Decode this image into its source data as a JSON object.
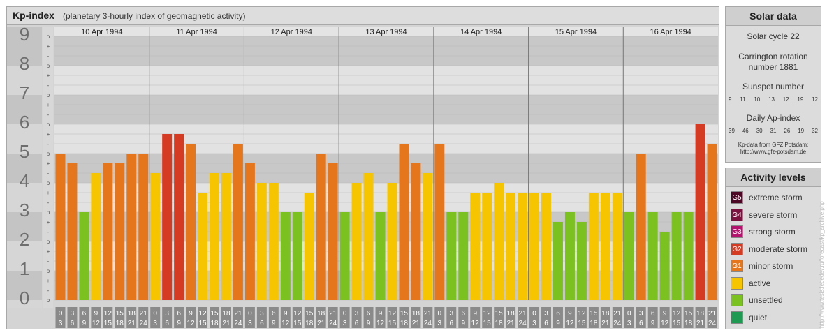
{
  "header": {
    "title": "Kp-index",
    "subtitle": "(planetary 3-hourly index of geomagnetic activity)"
  },
  "chart_data": {
    "type": "bar",
    "ylim": [
      0,
      9
    ],
    "y_ticks": [
      "0",
      "1",
      "2",
      "3",
      "4",
      "5",
      "6",
      "7",
      "8",
      "9"
    ],
    "sub_ticks": [
      "o",
      "-",
      "+",
      "o",
      "-",
      "+",
      "o",
      "-",
      "+",
      "o",
      "-",
      "+",
      "o",
      "-",
      "+",
      "o",
      "-",
      "+",
      "o",
      "-",
      "+",
      "o",
      "-",
      "+",
      "o",
      "-",
      "+",
      "o"
    ],
    "days": [
      "10 Apr 1994",
      "11 Apr 1994",
      "12 Apr 1994",
      "13 Apr 1994",
      "14 Apr 1994",
      "15 Apr 1994",
      "16 Apr 1994"
    ],
    "interval_top": [
      "0",
      "3",
      "6",
      "9",
      "12",
      "15",
      "18",
      "21"
    ],
    "interval_bottom": [
      "3",
      "6",
      "9",
      "12",
      "15",
      "18",
      "21",
      "24"
    ],
    "values": [
      5.0,
      4.667,
      3.0,
      4.333,
      4.667,
      4.667,
      5.0,
      5.0,
      4.333,
      5.667,
      5.667,
      5.333,
      3.667,
      4.333,
      4.333,
      5.333,
      4.667,
      4.0,
      4.0,
      3.0,
      3.0,
      3.667,
      5.0,
      4.667,
      3.0,
      4.0,
      4.333,
      3.0,
      4.0,
      5.333,
      4.667,
      4.333,
      5.333,
      3.0,
      3.0,
      3.667,
      3.667,
      4.0,
      3.667,
      3.667,
      3.667,
      3.667,
      2.667,
      3.0,
      2.667,
      3.667,
      3.667,
      3.667,
      3.0,
      5.0,
      3.0,
      2.333,
      3.0,
      3.0,
      6.0,
      5.333
    ],
    "colors": {
      "quiet": "#1e9a52",
      "unsettled": "#7bc11f",
      "active": "#f7c500",
      "minor": "#e6761c",
      "moderate": "#d53a22",
      "strong": "#b3136c",
      "severe": "#7c1240",
      "extreme": "#4c0724"
    },
    "grid": true
  },
  "solar": {
    "title": "Solar data",
    "cycle": "Solar cycle 22",
    "carrington_line1": "Carrington rotation",
    "carrington_line2": "number 1881",
    "sunspot_title": "Sunspot number",
    "sunspot": [
      "9",
      "11",
      "10",
      "13",
      "12",
      "19",
      "12"
    ],
    "ap_title": "Daily Ap-index",
    "ap": [
      "39",
      "46",
      "30",
      "31",
      "26",
      "19",
      "32"
    ],
    "source_line1": "Kp-data from GFZ Potsdam:",
    "source_line2": "http://www.gfz-potsdam.de"
  },
  "activity": {
    "title": "Activity levels",
    "items": [
      {
        "code": "G5",
        "label": "extreme storm",
        "color": "#4c0724"
      },
      {
        "code": "G4",
        "label": "severe storm",
        "color": "#7c1240"
      },
      {
        "code": "G3",
        "label": "strong storm",
        "color": "#b3136c"
      },
      {
        "code": "G2",
        "label": "moderate storm",
        "color": "#d53a22"
      },
      {
        "code": "G1",
        "label": "minor storm",
        "color": "#e6761c"
      },
      {
        "code": "",
        "label": "active",
        "color": "#f7c500"
      },
      {
        "code": "",
        "label": "unsettled",
        "color": "#7bc11f"
      },
      {
        "code": "",
        "label": "quiet",
        "color": "#1e9a52"
      }
    ]
  },
  "watermark": "http://www.tesis.lebedev.ru/forecast/kp_archive.php"
}
